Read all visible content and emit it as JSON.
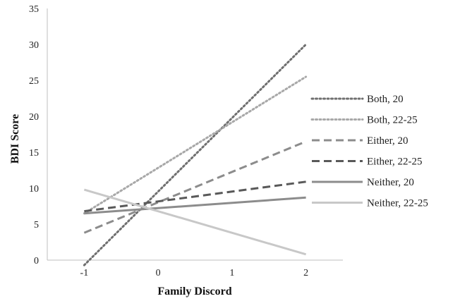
{
  "chart_data": {
    "type": "line",
    "title": "",
    "xlabel": "Family Discord",
    "ylabel": "BDI Score",
    "xlim": [
      -1.5,
      2.5
    ],
    "ylim": [
      0,
      35
    ],
    "xticks": [
      -1,
      0,
      1,
      2
    ],
    "yticks": [
      0,
      5,
      10,
      15,
      20,
      25,
      30,
      35
    ],
    "grid": false,
    "legend_position": "right",
    "x": [
      -1,
      2
    ],
    "series": [
      {
        "name": "Both, 20",
        "values": [
          -0.7,
          30.0
        ],
        "color": "#6f6f6f",
        "dash": "dotted"
      },
      {
        "name": "Both, 22-25",
        "values": [
          6.5,
          25.5
        ],
        "color": "#a8a8a8",
        "dash": "dotted"
      },
      {
        "name": "Either, 20",
        "values": [
          3.8,
          16.5
        ],
        "color": "#8c8c8c",
        "dash": "dashed"
      },
      {
        "name": "Either, 22-25",
        "values": [
          6.8,
          10.9
        ],
        "color": "#595959",
        "dash": "dashed"
      },
      {
        "name": "Neither, 20",
        "values": [
          6.5,
          8.7
        ],
        "color": "#8c8c8c",
        "dash": "solid"
      },
      {
        "name": "Neither, 22-25",
        "values": [
          9.8,
          0.8
        ],
        "color": "#c8c8c8",
        "dash": "solid"
      }
    ]
  }
}
